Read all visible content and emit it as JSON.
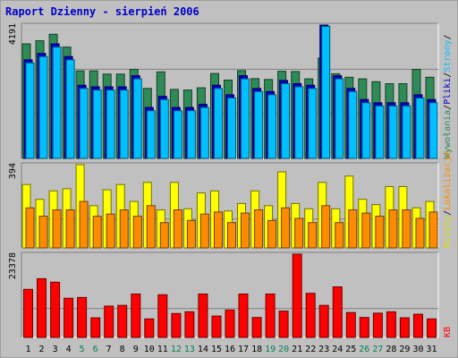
{
  "chart_data": [
    {
      "type": "bar",
      "panel": "top",
      "title": "Raport Dzienny -  sierpień 2006",
      "ymax_label": "4191",
      "ylim": [
        0,
        4191
      ],
      "series": [
        {
          "name": "Wywołania",
          "color": "#2e8b57",
          "values": [
            3600,
            3700,
            3900,
            3500,
            2750,
            2750,
            2650,
            2650,
            2800,
            2200,
            2720,
            2170,
            2150,
            2220,
            2670,
            2460,
            2760,
            2510,
            2480,
            2740,
            2730,
            2500,
            3150,
            2660,
            2550,
            2500,
            2410,
            2350,
            2350,
            2800,
            2550
          ]
        },
        {
          "name": "Pliki",
          "color": "#0000cc",
          "values": [
            3100,
            3300,
            3600,
            3200,
            2300,
            2250,
            2250,
            2250,
            2600,
            1600,
            1950,
            1600,
            1600,
            1700,
            2300,
            2000,
            2600,
            2200,
            2100,
            2450,
            2350,
            2300,
            4191,
            2600,
            2200,
            1850,
            1750,
            1750,
            1750,
            2000,
            1850
          ]
        },
        {
          "name": "Strony",
          "color": "#00bfff",
          "values": [
            3000,
            3200,
            3500,
            3100,
            2200,
            2150,
            2150,
            2150,
            2500,
            1500,
            1850,
            1500,
            1500,
            1600,
            2200,
            1900,
            2500,
            2100,
            2000,
            2350,
            2250,
            2200,
            4150,
            2500,
            2100,
            1750,
            1650,
            1650,
            1650,
            1900,
            1750
          ]
        }
      ]
    },
    {
      "type": "bar",
      "panel": "middle",
      "ymax_label": "394",
      "ylim": [
        0,
        394
      ],
      "series": [
        {
          "name": "Wizyty",
          "color": "#ffff00",
          "values": [
            300,
            230,
            270,
            280,
            394,
            200,
            275,
            300,
            220,
            310,
            180,
            310,
            185,
            260,
            270,
            175,
            210,
            270,
            200,
            360,
            210,
            185,
            310,
            185,
            340,
            230,
            205,
            290,
            290,
            190,
            220
          ]
        },
        {
          "name": "Lokalizacje",
          "color": "#ff8c00",
          "values": [
            190,
            150,
            180,
            180,
            220,
            150,
            160,
            180,
            150,
            200,
            120,
            180,
            130,
            160,
            170,
            120,
            165,
            180,
            130,
            190,
            140,
            120,
            200,
            120,
            180,
            165,
            150,
            180,
            180,
            140,
            170
          ]
        }
      ]
    },
    {
      "type": "bar",
      "panel": "bottom",
      "ymax_label": "23378",
      "ylim": [
        0,
        23378
      ],
      "series": [
        {
          "name": "KB",
          "color": "#ff0000",
          "values": [
            13500,
            16500,
            15500,
            11000,
            11200,
            5500,
            8800,
            9000,
            12200,
            5200,
            12000,
            6700,
            7200,
            12200,
            6000,
            7700,
            12200,
            5600,
            12200,
            7400,
            23378,
            12400,
            9000,
            14200,
            7000,
            5600,
            6800,
            7200,
            5500,
            6500,
            5200
          ]
        }
      ]
    }
  ],
  "x_labels": [
    "1",
    "2",
    "3",
    "4",
    "5",
    "6",
    "7",
    "8",
    "9",
    "10",
    "11",
    "12",
    "13",
    "14",
    "15",
    "16",
    "17",
    "18",
    "19",
    "20",
    "21",
    "22",
    "23",
    "24",
    "25",
    "26",
    "27",
    "28",
    "29",
    "30",
    "31"
  ],
  "weekend_days": [
    5,
    6,
    12,
    13,
    19,
    20,
    26,
    27
  ],
  "right_labels": {
    "top": [
      {
        "text": "Wywołania",
        "color": "#2e8b57"
      },
      {
        "text": "/",
        "color": "#000000"
      },
      {
        "text": "Pliki",
        "color": "#0000cc"
      },
      {
        "text": "/",
        "color": "#000000"
      },
      {
        "text": "Strony",
        "color": "#00bfff"
      },
      {
        "text": "/",
        "color": "#000000"
      }
    ],
    "middle": [
      {
        "text": "Wizyty",
        "color": "#dddd00"
      },
      {
        "text": "/",
        "color": "#000000"
      },
      {
        "text": "Lokalizacje",
        "color": "#ff8c00"
      }
    ],
    "bottom": [
      {
        "text": "KB",
        "color": "#ff0000"
      }
    ]
  },
  "colors": {
    "background": "#c0c0c0",
    "title": "#0000cc",
    "weekday_label": "#000000",
    "weekend_label": "#00805a",
    "grid": "#808080"
  }
}
